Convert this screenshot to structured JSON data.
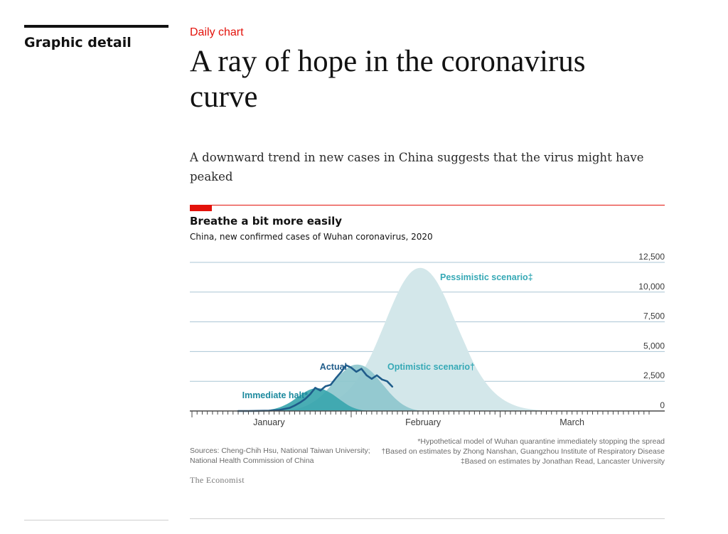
{
  "sidebar": {
    "section_label": "Graphic detail"
  },
  "article": {
    "kicker": "Daily chart",
    "headline": "A ray of hope in the coronavirus curve",
    "subhead": "A downward trend in new cases in China suggests that the virus might have peaked"
  },
  "chart": {
    "title": "Breathe a bit more easily",
    "subtitle": "China, new confirmed cases of Wuhan coronavirus, 2020",
    "sources_line1": "Sources: Cheng-Chih Hsu, National Taiwan University;",
    "sources_line2": "National Health Commission of China",
    "note1": "*Hypothetical model of Wuhan quarantine immediately stopping the spread",
    "note2": "†Based on estimates by Zhong Nanshan, Guangzhou Institute of Respiratory Disease",
    "note3": "‡Based on estimates by Jonathan Read, Lancaster University",
    "brand": "The Economist"
  },
  "colors": {
    "accent_red": "#e3120b",
    "pessimistic_fill": "#d3e7ea",
    "optimistic_fill": "#8ec7cd",
    "immediate_fill": "#3aa6ae",
    "actual_line": "#1f5c8a",
    "label_teal": "#36a9b6",
    "label_dark_teal": "#1d8a9e",
    "actual_label": "#1f5c8a",
    "grid": "#a9c5d4"
  },
  "chart_data": {
    "type": "area",
    "title": "Breathe a bit more easily",
    "subtitle": "China, new confirmed cases of Wuhan coronavirus, 2020",
    "x_unit": "day of 2020 (1 = January 1st)",
    "xlim": [
      1,
      90
    ],
    "ylim": [
      0,
      12500
    ],
    "yticks": [
      0,
      2500,
      5000,
      7500,
      10000,
      12500
    ],
    "ytick_labels": [
      "0",
      "2,500",
      "5,000",
      "7,500",
      "10,000",
      "12,500"
    ],
    "month_labels": [
      {
        "label": "January",
        "x": 16
      },
      {
        "label": "February",
        "x": 46
      },
      {
        "label": "March",
        "x": 75
      }
    ],
    "grid": true,
    "series": [
      {
        "name": "Pessimistic scenario‡",
        "kind": "area",
        "x": [
          20,
          22,
          24,
          26,
          28,
          30,
          32,
          34,
          36,
          38,
          40,
          42,
          44,
          46,
          48,
          50,
          52,
          54,
          56,
          58,
          60,
          62,
          64,
          66,
          68,
          70,
          72,
          74,
          76,
          78
        ],
        "values": [
          0,
          50,
          150,
          350,
          700,
          1200,
          2000,
          3200,
          4800,
          6800,
          8900,
          10700,
          11800,
          12000,
          11300,
          9800,
          7800,
          5800,
          3900,
          2500,
          1500,
          850,
          450,
          220,
          100,
          40,
          15,
          5,
          0,
          0
        ]
      },
      {
        "name": "Optimistic scenario†",
        "kind": "area",
        "x": [
          18,
          20,
          22,
          24,
          26,
          28,
          30,
          32,
          34,
          36,
          38,
          40,
          42,
          44,
          46
        ],
        "values": [
          0,
          80,
          250,
          600,
          1200,
          2100,
          3100,
          3800,
          3850,
          3300,
          2300,
          1300,
          550,
          150,
          0
        ]
      },
      {
        "name": "Immediate halt*",
        "kind": "area",
        "x": [
          11,
          14,
          16,
          18,
          20,
          22,
          24,
          26,
          28,
          30,
          32,
          34,
          36
        ],
        "values": [
          0,
          30,
          100,
          300,
          700,
          1300,
          1800,
          1900,
          1500,
          900,
          350,
          80,
          0
        ]
      },
      {
        "name": "Actual",
        "kind": "line",
        "x": [
          10,
          12,
          14,
          16,
          18,
          20,
          21,
          22,
          23,
          24,
          25,
          26,
          27,
          28,
          29,
          30,
          31,
          32,
          33,
          34,
          35,
          36,
          37,
          38,
          39,
          40
        ],
        "values": [
          0,
          0,
          10,
          30,
          80,
          260,
          460,
          700,
          1000,
          1400,
          1950,
          1720,
          2080,
          2200,
          2750,
          3250,
          3850,
          3650,
          3300,
          3550,
          3000,
          2700,
          3000,
          2650,
          2500,
          2050
        ]
      }
    ],
    "annotations": [
      {
        "text": "Pessimistic scenario‡",
        "series": "Pessimistic scenario‡"
      },
      {
        "text": "Optimistic scenario†",
        "series": "Optimistic scenario†"
      },
      {
        "text": "Actual",
        "series": "Actual"
      },
      {
        "text": "Immediate halt*",
        "series": "Immediate halt*"
      }
    ]
  }
}
